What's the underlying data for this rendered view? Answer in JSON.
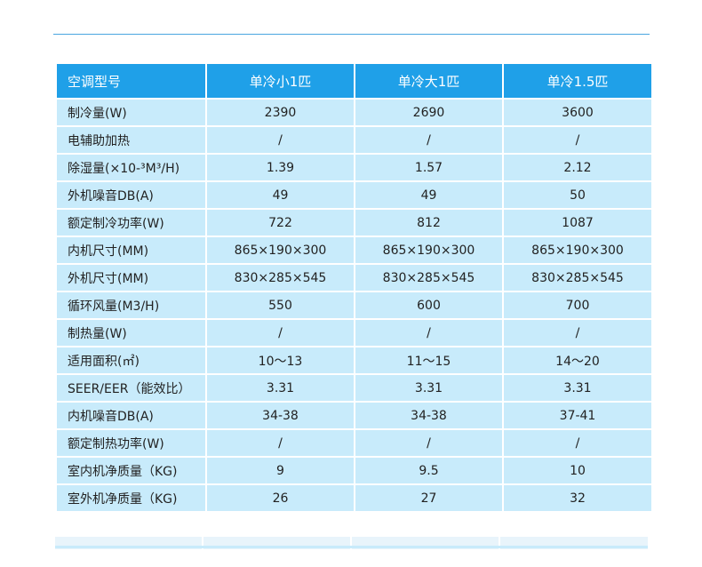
{
  "table": {
    "headers": [
      "空调型号",
      "单冷小1匹",
      "单冷大1匹",
      "单冷1.5匹"
    ],
    "rows": [
      [
        "制冷量(W)",
        "2390",
        "2690",
        "3600"
      ],
      [
        "电辅助加热",
        "/",
        "/",
        "/"
      ],
      [
        "除湿量(×10-³M³/H)",
        "1.39",
        "1.57",
        "2.12"
      ],
      [
        "外机噪音DB(A)",
        "49",
        "49",
        "50"
      ],
      [
        "额定制冷功率(W)",
        "722",
        "812",
        "1087"
      ],
      [
        "内机尺寸(MM)",
        "865×190×300",
        "865×190×300",
        "865×190×300"
      ],
      [
        "外机尺寸(MM)",
        "830×285×545",
        "830×285×545",
        "830×285×545"
      ],
      [
        "循环风量(M3/H)",
        "550",
        "600",
        "700"
      ],
      [
        "制热量(W)",
        "/",
        "/",
        "/"
      ],
      [
        "适用面积(㎡)",
        "10～13",
        "11～15",
        "14～20"
      ],
      [
        "SEER/EER（能效比）",
        "3.31",
        "3.31",
        "3.31"
      ],
      [
        "内机噪音DB(A)",
        "34-38",
        "34-38",
        "37-41"
      ],
      [
        "额定制热功率(W)",
        "/",
        "/",
        "/"
      ],
      [
        "室内机净质量（KG)",
        "9",
        "9.5",
        "10"
      ],
      [
        "室外机净质量（KG)",
        "26",
        "27",
        "32"
      ]
    ]
  },
  "colors": {
    "header_bg": "#1fa0e8",
    "cell_bg": "#c8ebfb",
    "rule": "#4aa6e0"
  }
}
